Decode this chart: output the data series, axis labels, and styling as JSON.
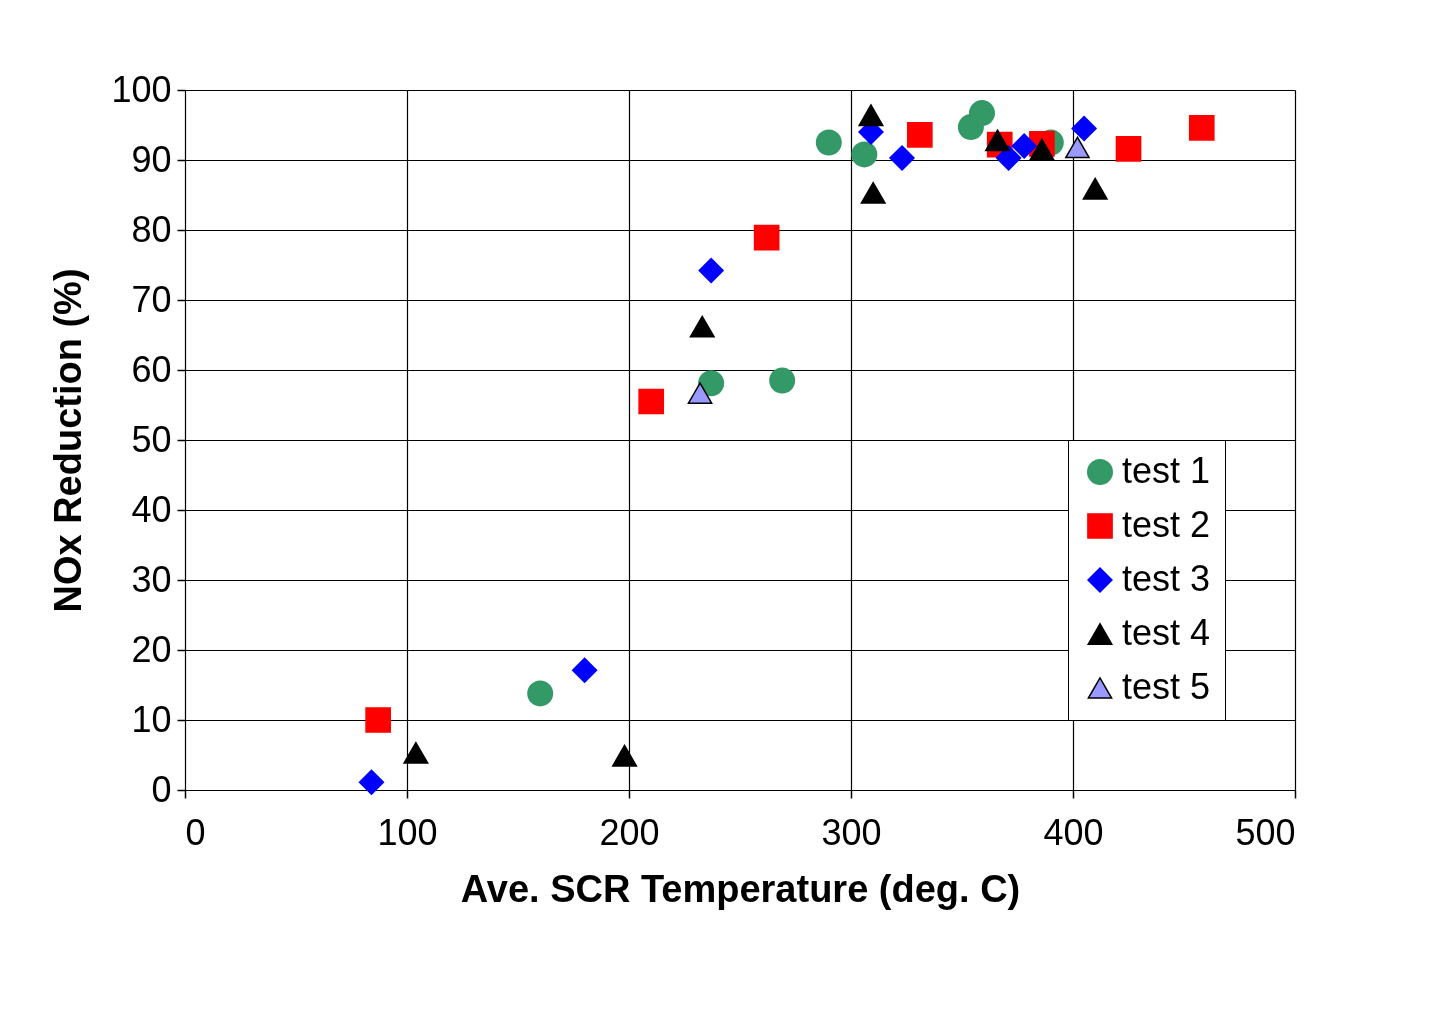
{
  "chart_data": {
    "type": "scatter",
    "xlabel": "Ave. SCR Temperature (deg. C)",
    "ylabel": "NOx Reduction (%)",
    "xlim": [
      0,
      500
    ],
    "xticks": [
      0,
      100,
      200,
      300,
      400,
      500
    ],
    "ylim": [
      0,
      100
    ],
    "yticks": [
      0,
      10,
      20,
      30,
      40,
      50,
      60,
      70,
      80,
      90,
      100
    ],
    "grid": true,
    "legend": "bottom right",
    "series": [
      {
        "name": "test 1",
        "color": "#339966",
        "marker": "circle",
        "x": [
          160,
          237,
          269,
          290,
          306,
          354,
          359,
          390
        ],
        "values": [
          13.8,
          58.1,
          58.5,
          92.5,
          90.8,
          94.7,
          96.7,
          92.5
        ]
      },
      {
        "name": "test 2",
        "color": "#ff0000",
        "marker": "square",
        "x": [
          87,
          210,
          262,
          331,
          367,
          386,
          425,
          458
        ],
        "values": [
          10.0,
          55.5,
          78.9,
          93.6,
          92.2,
          92.3,
          91.6,
          94.6
        ]
      },
      {
        "name": "test 3",
        "color": "#0000ff",
        "marker": "diamond",
        "x": [
          84,
          180,
          237,
          309,
          323,
          371,
          378,
          405
        ],
        "values": [
          1.1,
          17.1,
          74.2,
          94.0,
          90.3,
          90.3,
          92.0,
          94.5
        ]
      },
      {
        "name": "test 4",
        "color": "#000000",
        "marker": "triangle",
        "x": [
          104,
          198,
          233,
          309,
          310,
          366,
          386,
          410
        ],
        "values": [
          5.3,
          4.9,
          66.2,
          96.4,
          85.3,
          92.8,
          91.5,
          85.9
        ]
      },
      {
        "name": "test 5",
        "color": "#9999ff",
        "marker": "triangle",
        "x": [
          232,
          402
        ],
        "values": [
          56.7,
          91.8
        ]
      }
    ]
  }
}
